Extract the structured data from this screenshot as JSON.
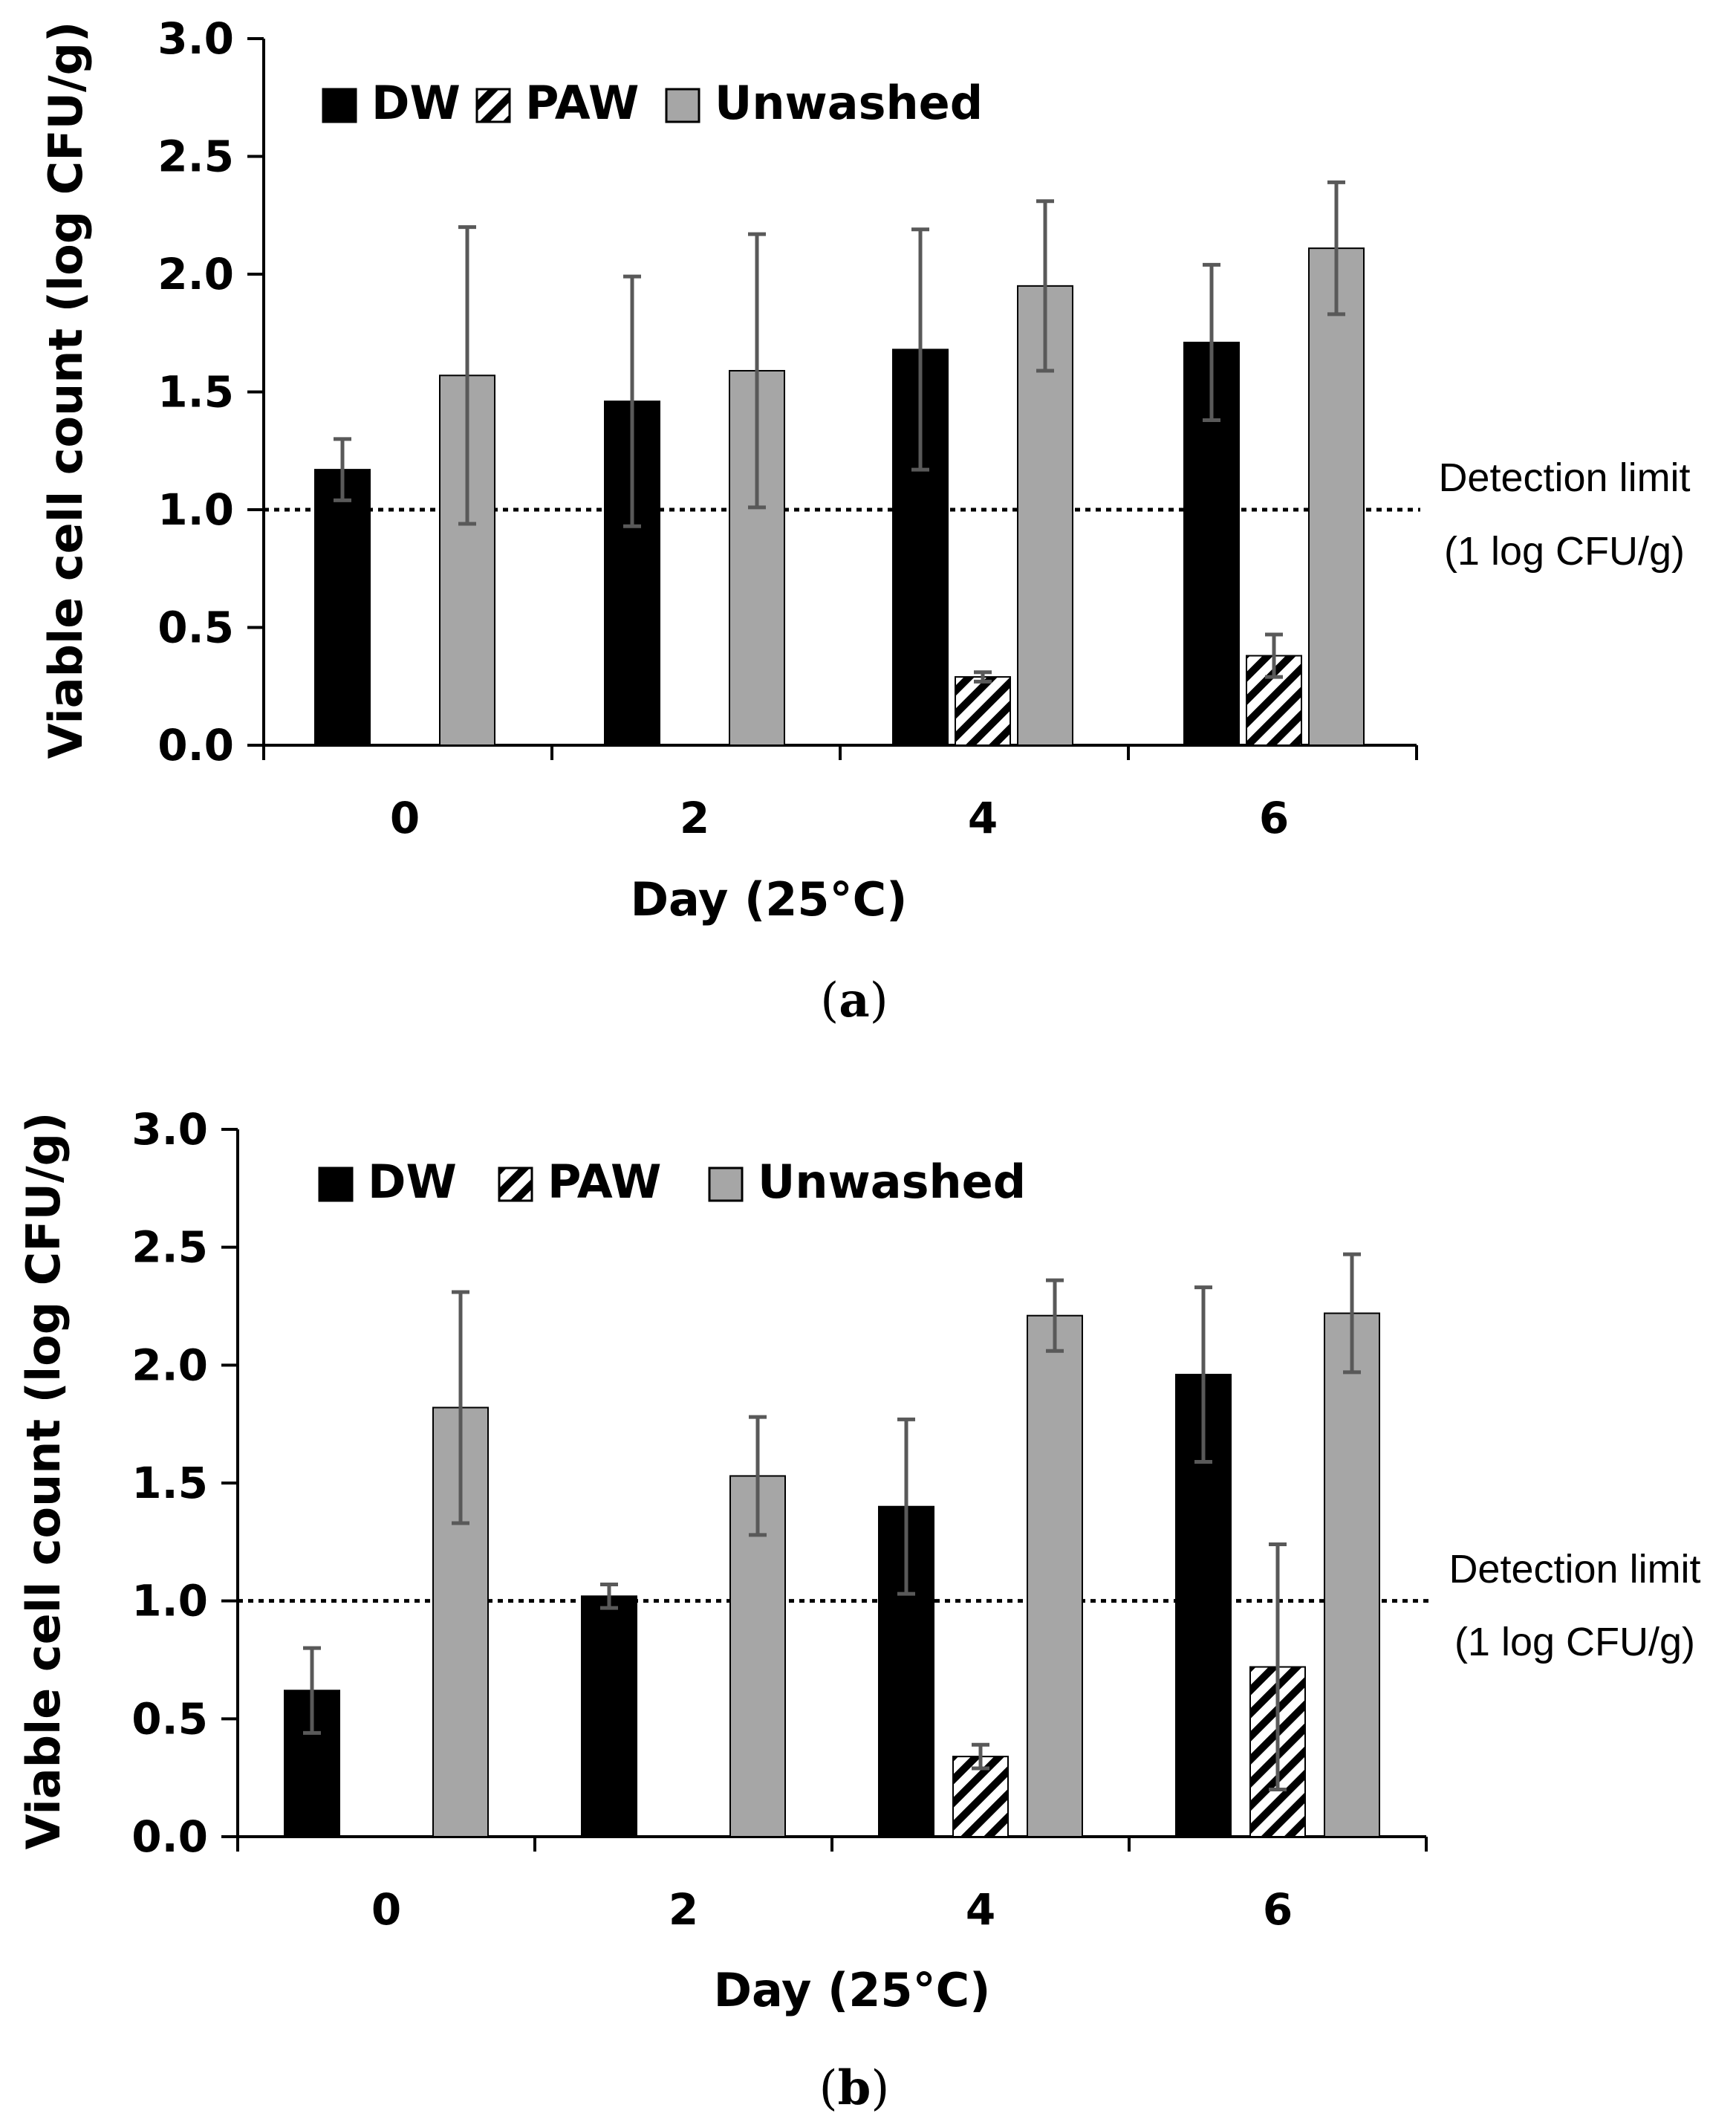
{
  "chart_data": [
    {
      "panel": "a",
      "panel_label": "a",
      "type": "bar",
      "categories": [
        "0",
        "2",
        "4",
        "6"
      ],
      "xlabel": "Day (25°C)",
      "ylabel": "Viable cell count (log CFU/g)",
      "ylim": [
        0,
        3.0
      ],
      "yticks": [
        "0.0",
        "0.5",
        "1.0",
        "1.5",
        "2.0",
        "2.5",
        "3.0"
      ],
      "grid": false,
      "legend_position": "top-left",
      "series": [
        {
          "name": "DW",
          "color": "#000000",
          "pattern": "solid",
          "values": [
            1.17,
            1.46,
            1.68,
            1.71
          ],
          "errors": [
            0.13,
            0.53,
            0.51,
            0.33
          ]
        },
        {
          "name": "PAW",
          "color": "#000000",
          "pattern": "hatched",
          "values": [
            null,
            null,
            0.29,
            0.38
          ],
          "errors": [
            null,
            null,
            0.02,
            0.09
          ]
        },
        {
          "name": "Unwashed",
          "color": "#a6a6a6",
          "pattern": "solid",
          "values": [
            1.57,
            1.59,
            1.95,
            2.11
          ],
          "errors": [
            0.63,
            0.58,
            0.36,
            0.28
          ]
        }
      ],
      "detection_limit": {
        "value": 1.0,
        "label_line1": "Detection limit",
        "label_line2": "(1 log CFU/g)"
      }
    },
    {
      "panel": "b",
      "panel_label": "b",
      "type": "bar",
      "categories": [
        "0",
        "2",
        "4",
        "6"
      ],
      "xlabel": "Day (25°C)",
      "ylabel": "Viable cell count (log CFU/g)",
      "ylim": [
        0,
        3.0
      ],
      "yticks": [
        "0.0",
        "0.5",
        "1.0",
        "1.5",
        "2.0",
        "2.5",
        "3.0"
      ],
      "grid": false,
      "legend_position": "top-left",
      "series": [
        {
          "name": "DW",
          "color": "#000000",
          "pattern": "solid",
          "values": [
            0.62,
            1.02,
            1.4,
            1.96
          ],
          "errors": [
            0.18,
            0.05,
            0.37,
            0.37
          ]
        },
        {
          "name": "PAW",
          "color": "#000000",
          "pattern": "hatched",
          "values": [
            null,
            null,
            0.34,
            0.72
          ],
          "errors": [
            null,
            null,
            0.05,
            0.52
          ]
        },
        {
          "name": "Unwashed",
          "color": "#a6a6a6",
          "pattern": "solid",
          "values": [
            1.82,
            1.53,
            2.21,
            2.22
          ],
          "errors": [
            0.49,
            0.25,
            0.15,
            0.25
          ]
        }
      ],
      "detection_limit": {
        "value": 1.0,
        "label_line1": "Detection limit",
        "label_line2": "(1 log CFU/g)"
      }
    }
  ],
  "colors": {
    "axis": "#000000",
    "error_bar": "#595959",
    "bar_outline": "#000000"
  }
}
